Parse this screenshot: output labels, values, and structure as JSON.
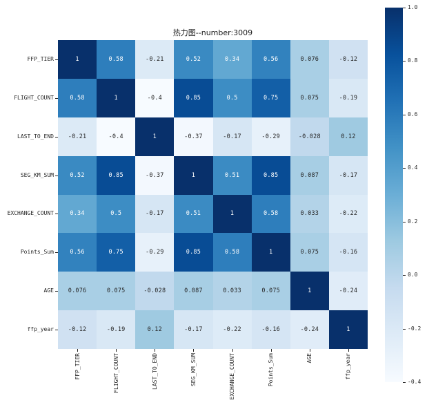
{
  "chart_data": {
    "type": "heatmap",
    "title": "热力图--number:3009",
    "x_labels": [
      "FFP_TIER",
      "FLIGHT_COUNT",
      "LAST_TO_END",
      "SEG_KM_SUM",
      "EXCHANGE_COUNT",
      "Points_Sum",
      "AGE",
      "ffp_year"
    ],
    "y_labels": [
      "FFP_TIER",
      "FLIGHT_COUNT",
      "LAST_TO_END",
      "SEG_KM_SUM",
      "EXCHANGE_COUNT",
      "Points_Sum",
      "AGE",
      "ffp_year"
    ],
    "matrix": [
      [
        1,
        0.58,
        -0.21,
        0.52,
        0.34,
        0.56,
        0.076,
        -0.12
      ],
      [
        0.58,
        1,
        -0.4,
        0.85,
        0.5,
        0.75,
        0.075,
        -0.19
      ],
      [
        -0.21,
        -0.4,
        1,
        -0.37,
        -0.17,
        -0.29,
        -0.028,
        0.12
      ],
      [
        0.52,
        0.85,
        -0.37,
        1,
        0.51,
        0.85,
        0.087,
        -0.17
      ],
      [
        0.34,
        0.5,
        -0.17,
        0.51,
        1,
        0.58,
        0.033,
        -0.22
      ],
      [
        0.56,
        0.75,
        -0.29,
        0.85,
        0.58,
        1,
        0.075,
        -0.16
      ],
      [
        0.076,
        0.075,
        -0.028,
        0.087,
        0.033,
        0.075,
        1,
        -0.24
      ],
      [
        -0.12,
        -0.19,
        0.12,
        -0.17,
        -0.22,
        -0.16,
        -0.24,
        1
      ]
    ],
    "vmin": -0.4,
    "vmax": 1.0,
    "colormap": {
      "name": "Blues",
      "stops": [
        "#f7fbff",
        "#deebf7",
        "#c6dbef",
        "#9ecae1",
        "#6baed6",
        "#4292c6",
        "#2171b5",
        "#08519c",
        "#08306b"
      ]
    },
    "annotation_colors": {
      "on_dark": "#ffffff",
      "on_light": "#262626"
    },
    "colorbar": {
      "position": "right",
      "tick_labels": [
        "1.0",
        "0.8",
        "0.6",
        "0.4",
        "0.2",
        "0.0",
        "-0.2",
        "-0.4"
      ],
      "tick_values": [
        1.0,
        0.8,
        0.6,
        0.4,
        0.2,
        0.0,
        -0.2,
        -0.4
      ]
    },
    "grid": false,
    "legend_position": "right-colorbar"
  }
}
